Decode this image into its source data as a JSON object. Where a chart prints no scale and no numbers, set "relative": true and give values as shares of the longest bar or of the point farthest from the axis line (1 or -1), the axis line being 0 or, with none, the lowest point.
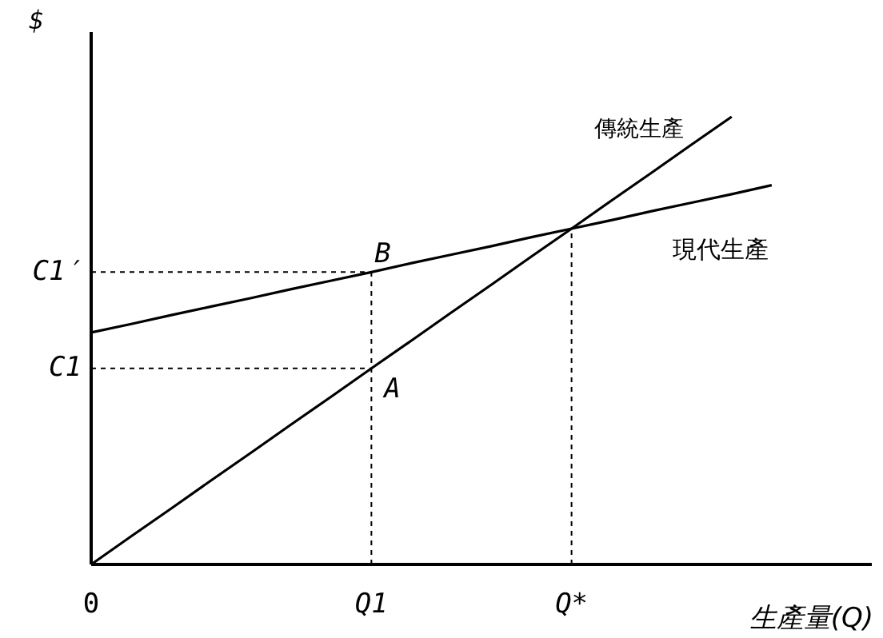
{
  "chart_data": {
    "type": "line",
    "relative": true,
    "ylabel": "$",
    "xlabel": "生產量(Q)",
    "marker": "none",
    "categories": [
      "0",
      null,
      null,
      null,
      null,
      null,
      null,
      "Q1",
      null,
      null,
      null,
      null,
      "Q*",
      null,
      null,
      null,
      null,
      null,
      null,
      null
    ],
    "series": [
      {
        "name": "傳統生產",
        "color": "#000000",
        "values": [
          0,
          0.063,
          0.125,
          0.188,
          0.25,
          0.313,
          0.375,
          0.438,
          0.5,
          0.563,
          0.625,
          0.688,
          0.75,
          0.813,
          0.875,
          0.938,
          1,
          null,
          null,
          null
        ],
        "line_style": "solid"
      },
      {
        "name": "現代生產",
        "color": "#000000",
        "values": [
          0.518,
          0.537,
          0.557,
          0.576,
          0.595,
          0.615,
          0.634,
          0.653,
          0.673,
          0.692,
          0.711,
          0.731,
          0.75,
          0.769,
          0.789,
          0.808,
          0.827,
          0.847,
          null,
          null
        ],
        "line_style": "solid"
      },
      {
        "color": "#000000",
        "x": [
          "0",
          "Q1"
        ],
        "values": [
          0.653,
          0.653
        ],
        "line_style": "dashed"
      },
      {
        "color": "#000000",
        "x": [
          "0",
          "Q1"
        ],
        "values": [
          0.438,
          0.438
        ],
        "line_style": "dashed"
      },
      {
        "color": "#000000",
        "x": [
          "Q1",
          "Q1"
        ],
        "values": [
          0,
          0.653
        ],
        "line_style": "dashed"
      },
      {
        "color": "#000000",
        "x": [
          "Q*",
          "Q*"
        ],
        "values": [
          0,
          0.75
        ],
        "line_style": "dashed"
      }
    ],
    "annotations": [
      {
        "text": "B",
        "x": "Q1",
        "y": 0.653
      },
      {
        "text": "A",
        "x": "Q1",
        "y": 0.438
      },
      {
        "text": "C1′",
        "x": "0",
        "y": 0.653
      },
      {
        "text": "C1",
        "x": "0",
        "y": 0.438
      }
    ]
  }
}
